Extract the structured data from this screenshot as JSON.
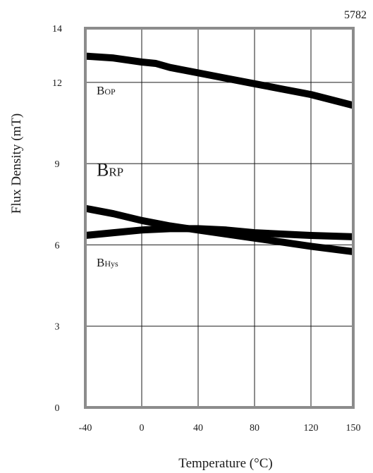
{
  "figure_id": "5782",
  "chart_data": {
    "type": "line",
    "title": "",
    "xlabel": "Temperature (°C)",
    "ylabel": "Flux Density (mT)",
    "xlim": [
      -40,
      150
    ],
    "ylim": [
      0,
      14
    ],
    "x_ticks": [
      {
        "value": -40,
        "label": "-40"
      },
      {
        "value": 0,
        "label": "0"
      },
      {
        "value": 40,
        "label": "40"
      },
      {
        "value": 80,
        "label": "80"
      },
      {
        "value": 120,
        "label": "120"
      },
      {
        "value": 150,
        "label": "150"
      }
    ],
    "y_ticks": [
      {
        "value": 0,
        "label": "0"
      },
      {
        "value": 3,
        "label": "3"
      },
      {
        "value": 6,
        "label": "6"
      },
      {
        "value": 9,
        "label": "9"
      },
      {
        "value": 12,
        "label": "12"
      },
      {
        "value": 14,
        "label": "14"
      }
    ],
    "grid": true,
    "series": [
      {
        "name": "BOP",
        "label_main": "B",
        "label_sub": "OP",
        "x": [
          -40,
          -20,
          0,
          10,
          20,
          40,
          60,
          80,
          100,
          120,
          150
        ],
        "y": [
          12.97,
          12.9,
          12.75,
          12.7,
          12.55,
          12.35,
          12.15,
          11.95,
          11.75,
          11.55,
          11.15
        ]
      },
      {
        "name": "BRP",
        "label_main": "B",
        "label_sub": "RP",
        "x": [
          -40,
          -20,
          0,
          20,
          40,
          60,
          80,
          100,
          120,
          150
        ],
        "y": [
          7.35,
          7.15,
          6.9,
          6.7,
          6.55,
          6.4,
          6.25,
          6.1,
          5.95,
          5.75
        ]
      },
      {
        "name": "BHys",
        "label_main": "B",
        "label_sub": "Hys",
        "x": [
          -40,
          -20,
          0,
          20,
          40,
          60,
          80,
          100,
          120,
          150
        ],
        "y": [
          6.35,
          6.45,
          6.55,
          6.6,
          6.6,
          6.55,
          6.45,
          6.4,
          6.35,
          6.3
        ]
      }
    ],
    "series_labels": [
      {
        "series": "BOP",
        "x": -32,
        "y": 11.55,
        "size": "small"
      },
      {
        "series": "BRP",
        "x": -32,
        "y": 8.55,
        "size": "large"
      },
      {
        "series": "BHys",
        "x": -32,
        "y": 5.2,
        "size": "small"
      }
    ]
  }
}
